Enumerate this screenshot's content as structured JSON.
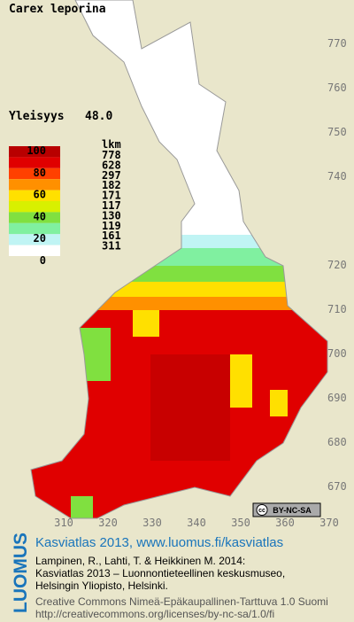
{
  "title": "Carex leporina",
  "frequency": {
    "label": "Yleisyys",
    "value": "48.0"
  },
  "legend": {
    "scale_labels": [
      100,
      80,
      60,
      40,
      20,
      0
    ],
    "count_header": "lkm",
    "counts": [
      778,
      628,
      297,
      182,
      171,
      117,
      130,
      119,
      161,
      311
    ],
    "colors": [
      "#b80000",
      "#e00000",
      "#ff4000",
      "#ff9000",
      "#ffe000",
      "#d8f000",
      "#80e040",
      "#80f0a0",
      "#c0f4f4",
      "#ffffff"
    ]
  },
  "axes": {
    "y_labels": [
      770,
      760,
      750,
      740,
      720,
      710,
      700,
      690,
      680,
      670
    ],
    "x_labels": [
      310,
      320,
      330,
      340,
      350,
      360,
      370
    ]
  },
  "badge": {
    "icon": "cc",
    "text": "BY-NC-SA"
  },
  "footer": {
    "brand": "LUOMUS",
    "heading": "Kasviatlas 2013, www.luomus.fi/kasviatlas",
    "citation": [
      "Lampinen, R., Lahti, T. & Heikkinen M. 2014:",
      "Kasviatlas 2013 – Luonnontieteellinen keskusmuseo,",
      "Helsingin Yliopisto, Helsinki."
    ],
    "license": [
      "Creative Commons Nimeä-Epäkaupallinen-Tarttuva 1.0 Suomi",
      "http://creativecommons.org/licenses/by-nc-sa/1.0/fi"
    ]
  }
}
